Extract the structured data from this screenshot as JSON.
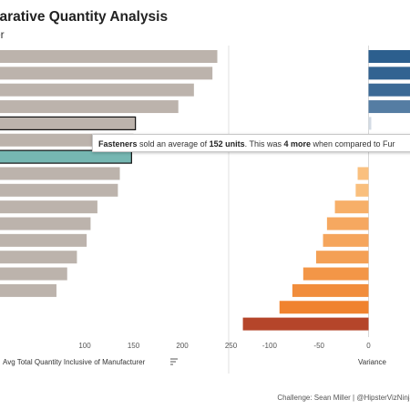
{
  "header": {
    "title": "parative Quantity Analysis",
    "subtitle": "rer"
  },
  "tooltip": {
    "item": "Fasteners",
    "t1": " sold an average of ",
    "value": "152 units",
    "t2": ". This was ",
    "diff": "4 more",
    "t3": " when compared to Fur"
  },
  "credit": "Challenge: Sean Miller | @HipsterVizNinja",
  "colors": {
    "bar_gray": "#bcb3ac",
    "highlight": "#76b7b2",
    "blue_dark": "#2c5f8e",
    "orange_dark": "#b5452a"
  },
  "chart_data": [
    {
      "type": "bar",
      "orientation": "horizontal",
      "xlabel": "Avg Total Quantity Inclusive of Manufacturer",
      "xticks": [
        100,
        150,
        200,
        250
      ],
      "values": [
        236,
        231,
        212,
        196,
        152,
        150,
        148,
        136,
        134,
        113,
        106,
        102,
        92,
        82,
        71
      ],
      "highlight_index": 6,
      "outlined_indices": [
        4,
        6
      ]
    },
    {
      "type": "bar",
      "orientation": "horizontal",
      "xlabel": "Variance",
      "xticks": [
        -100,
        -50,
        0
      ],
      "values": [
        58,
        56,
        53,
        44,
        1,
        null,
        null,
        -11,
        -13,
        -34,
        -42,
        -46,
        -53,
        -66,
        -77,
        -90,
        -127
      ]
    }
  ]
}
